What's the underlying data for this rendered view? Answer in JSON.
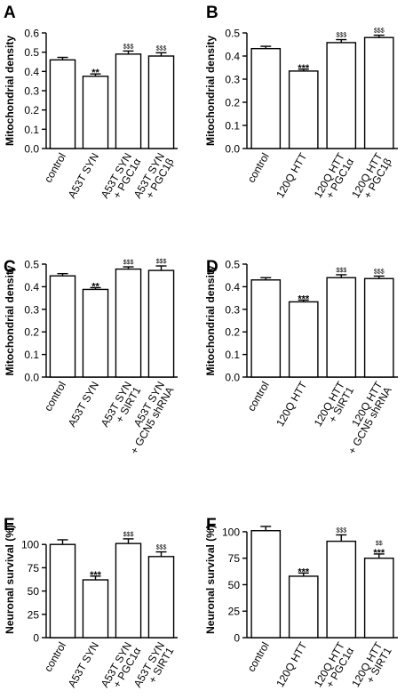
{
  "chart_data": [
    {
      "panel": "A",
      "type": "bar",
      "ylabel": "Mitochondrial density",
      "ylim": [
        0,
        0.6
      ],
      "yticks": [
        "0.0",
        "0.1",
        "0.2",
        "0.3",
        "0.4",
        "0.5",
        "0.6"
      ],
      "categories": [
        [
          "control"
        ],
        [
          "A53T SYN"
        ],
        [
          "A53T SYN",
          "+ PGC1α"
        ],
        [
          "A53T SYN",
          "+ PGC1β"
        ]
      ],
      "values": [
        0.46,
        0.375,
        0.49,
        0.48
      ],
      "errors": [
        0.013,
        0.012,
        0.016,
        0.017
      ],
      "significance": [
        "",
        "**",
        "$$$",
        "$$$"
      ]
    },
    {
      "panel": "B",
      "type": "bar",
      "ylabel": "Mitochondrial density",
      "ylim": [
        0,
        0.5
      ],
      "yticks": [
        "0.0",
        "0.1",
        "0.2",
        "0.3",
        "0.4",
        "0.5"
      ],
      "categories": [
        [
          "control"
        ],
        [
          "120Q HTT"
        ],
        [
          "120Q HTT",
          "+ PGC1α"
        ],
        [
          "120Q HTT",
          "+ PGC1β"
        ]
      ],
      "values": [
        0.432,
        0.335,
        0.458,
        0.48
      ],
      "errors": [
        0.01,
        0.008,
        0.013,
        0.01
      ],
      "significance": [
        "",
        "***",
        "$$$",
        "$$$"
      ]
    },
    {
      "panel": "C",
      "type": "bar",
      "ylabel": "Mitochondrial density",
      "ylim": [
        0,
        0.5
      ],
      "yticks": [
        "0.0",
        "0.1",
        "0.2",
        "0.3",
        "0.4",
        "0.5"
      ],
      "categories": [
        [
          "control"
        ],
        [
          "A53T SYN"
        ],
        [
          "A53T SYN",
          "+ SIRT1"
        ],
        [
          "A53T SYN",
          "+ GCN5 shRNA"
        ]
      ],
      "values": [
        0.448,
        0.388,
        0.478,
        0.472
      ],
      "errors": [
        0.01,
        0.008,
        0.01,
        0.02
      ],
      "significance": [
        "",
        "**",
        "$$$",
        "$$$"
      ]
    },
    {
      "panel": "D",
      "type": "bar",
      "ylabel": "Mitochondrial density",
      "ylim": [
        0,
        0.5
      ],
      "yticks": [
        "0.0",
        "0.1",
        "0.2",
        "0.3",
        "0.4",
        "0.5"
      ],
      "categories": [
        [
          "control"
        ],
        [
          "120Q HTT"
        ],
        [
          "120Q HTT",
          "+ SIRT1"
        ],
        [
          "120Q HTT",
          "+ GCN5 shRNA"
        ]
      ],
      "values": [
        0.43,
        0.333,
        0.44,
        0.436
      ],
      "errors": [
        0.01,
        0.008,
        0.013,
        0.011
      ],
      "significance": [
        "",
        "***",
        "$$$",
        "$$$"
      ]
    },
    {
      "panel": "E",
      "type": "bar",
      "ylabel": "Neuronal survival (%)",
      "ylim": [
        0,
        125
      ],
      "yticks": [
        "0",
        "25",
        "50",
        "75",
        "100"
      ],
      "categories": [
        [
          "control"
        ],
        [
          "A53T SYN"
        ],
        [
          "A53T SYN",
          "+ PGC1α"
        ],
        [
          "A53T SYN",
          "+ SIRT1"
        ]
      ],
      "values": [
        100,
        62,
        101,
        87
      ],
      "errors": [
        5,
        4,
        5,
        5
      ],
      "significance": [
        "",
        "***",
        "$$$",
        "$$$"
      ]
    },
    {
      "panel": "F",
      "type": "bar",
      "ylabel": "Neuronal survival (%)",
      "ylim": [
        0,
        110
      ],
      "yticks": [
        "0",
        "25",
        "50",
        "75",
        "100"
      ],
      "categories": [
        [
          "control"
        ],
        [
          "120Q HTT"
        ],
        [
          "120Q HTT",
          "+ PGC1α"
        ],
        [
          "120Q HTT",
          "+ SIRT1"
        ]
      ],
      "values": [
        101,
        58,
        91,
        75
      ],
      "errors": [
        4,
        3,
        6,
        4
      ],
      "significance": [
        "",
        "***",
        "$$$",
        "$$ ***"
      ]
    }
  ]
}
